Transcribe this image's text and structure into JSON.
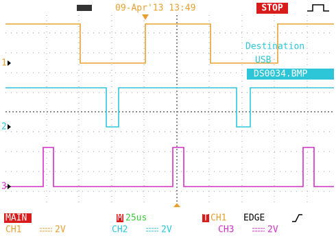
{
  "header": {
    "timestamp": "09-Apr'13 13:49",
    "state": "STOP"
  },
  "save_menu": {
    "title": "Destination",
    "device": "USB",
    "file": "DS0034.BMP"
  },
  "channel_markers": [
    "1",
    "2",
    "3"
  ],
  "footer": {
    "mode": "MAIN",
    "timebase_icon": "M",
    "timebase": "25us",
    "trigger_icon": "T",
    "trigger_source": "CH1",
    "trigger_type": "EDGE",
    "channels": [
      {
        "name": "CH1",
        "scale": "2V"
      },
      {
        "name": "CH2",
        "scale": "2V"
      },
      {
        "name": "CH3",
        "scale": "2V"
      }
    ]
  }
}
